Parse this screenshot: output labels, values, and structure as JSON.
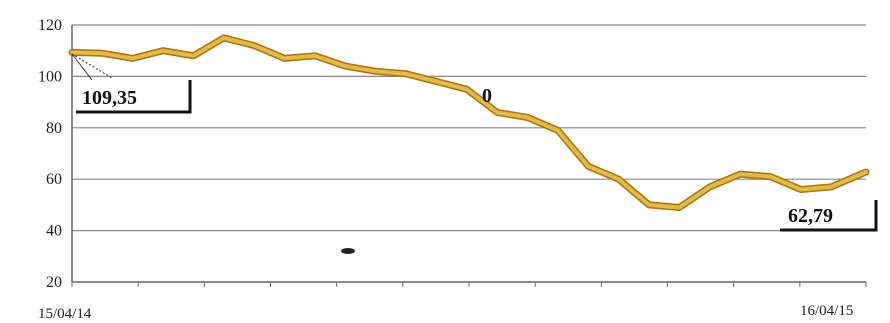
{
  "chart_data": {
    "type": "line",
    "title": "",
    "xlabel": "",
    "ylabel": "",
    "x_range_labels": [
      "15/04/14",
      "16/04/15"
    ],
    "ylim": [
      20,
      120
    ],
    "yticks": [
      20,
      40,
      60,
      80,
      100,
      120
    ],
    "grid": true,
    "line_color": "#e8b93a",
    "line_edge_color": "#a0761a",
    "series": [
      {
        "x": [
          "15/04/14",
          "29/04/14",
          "13/05/14",
          "27/05/14",
          "10/06/14",
          "24/06/14",
          "08/07/14",
          "22/07/14",
          "05/08/14",
          "19/08/14",
          "02/09/14",
          "16/09/14",
          "30/09/14",
          "14/10/14",
          "28/10/14",
          "11/11/14",
          "25/11/14",
          "09/12/14",
          "23/12/14",
          "06/01/15",
          "20/01/15",
          "03/02/15",
          "17/02/15",
          "03/03/15",
          "17/03/15",
          "31/03/15",
          "16/04/15"
        ],
        "values": [
          109.35,
          109,
          107,
          110,
          108,
          115,
          112,
          107,
          108,
          104,
          102,
          101,
          98,
          95,
          86,
          84,
          79,
          65,
          60,
          50,
          49,
          57,
          62,
          61,
          56,
          57,
          62.79
        ]
      }
    ],
    "annotations": [
      {
        "text": "109,35",
        "at": "start"
      },
      {
        "text": "0",
        "at": "middle"
      },
      {
        "text": "62,79",
        "at": "end"
      }
    ]
  }
}
